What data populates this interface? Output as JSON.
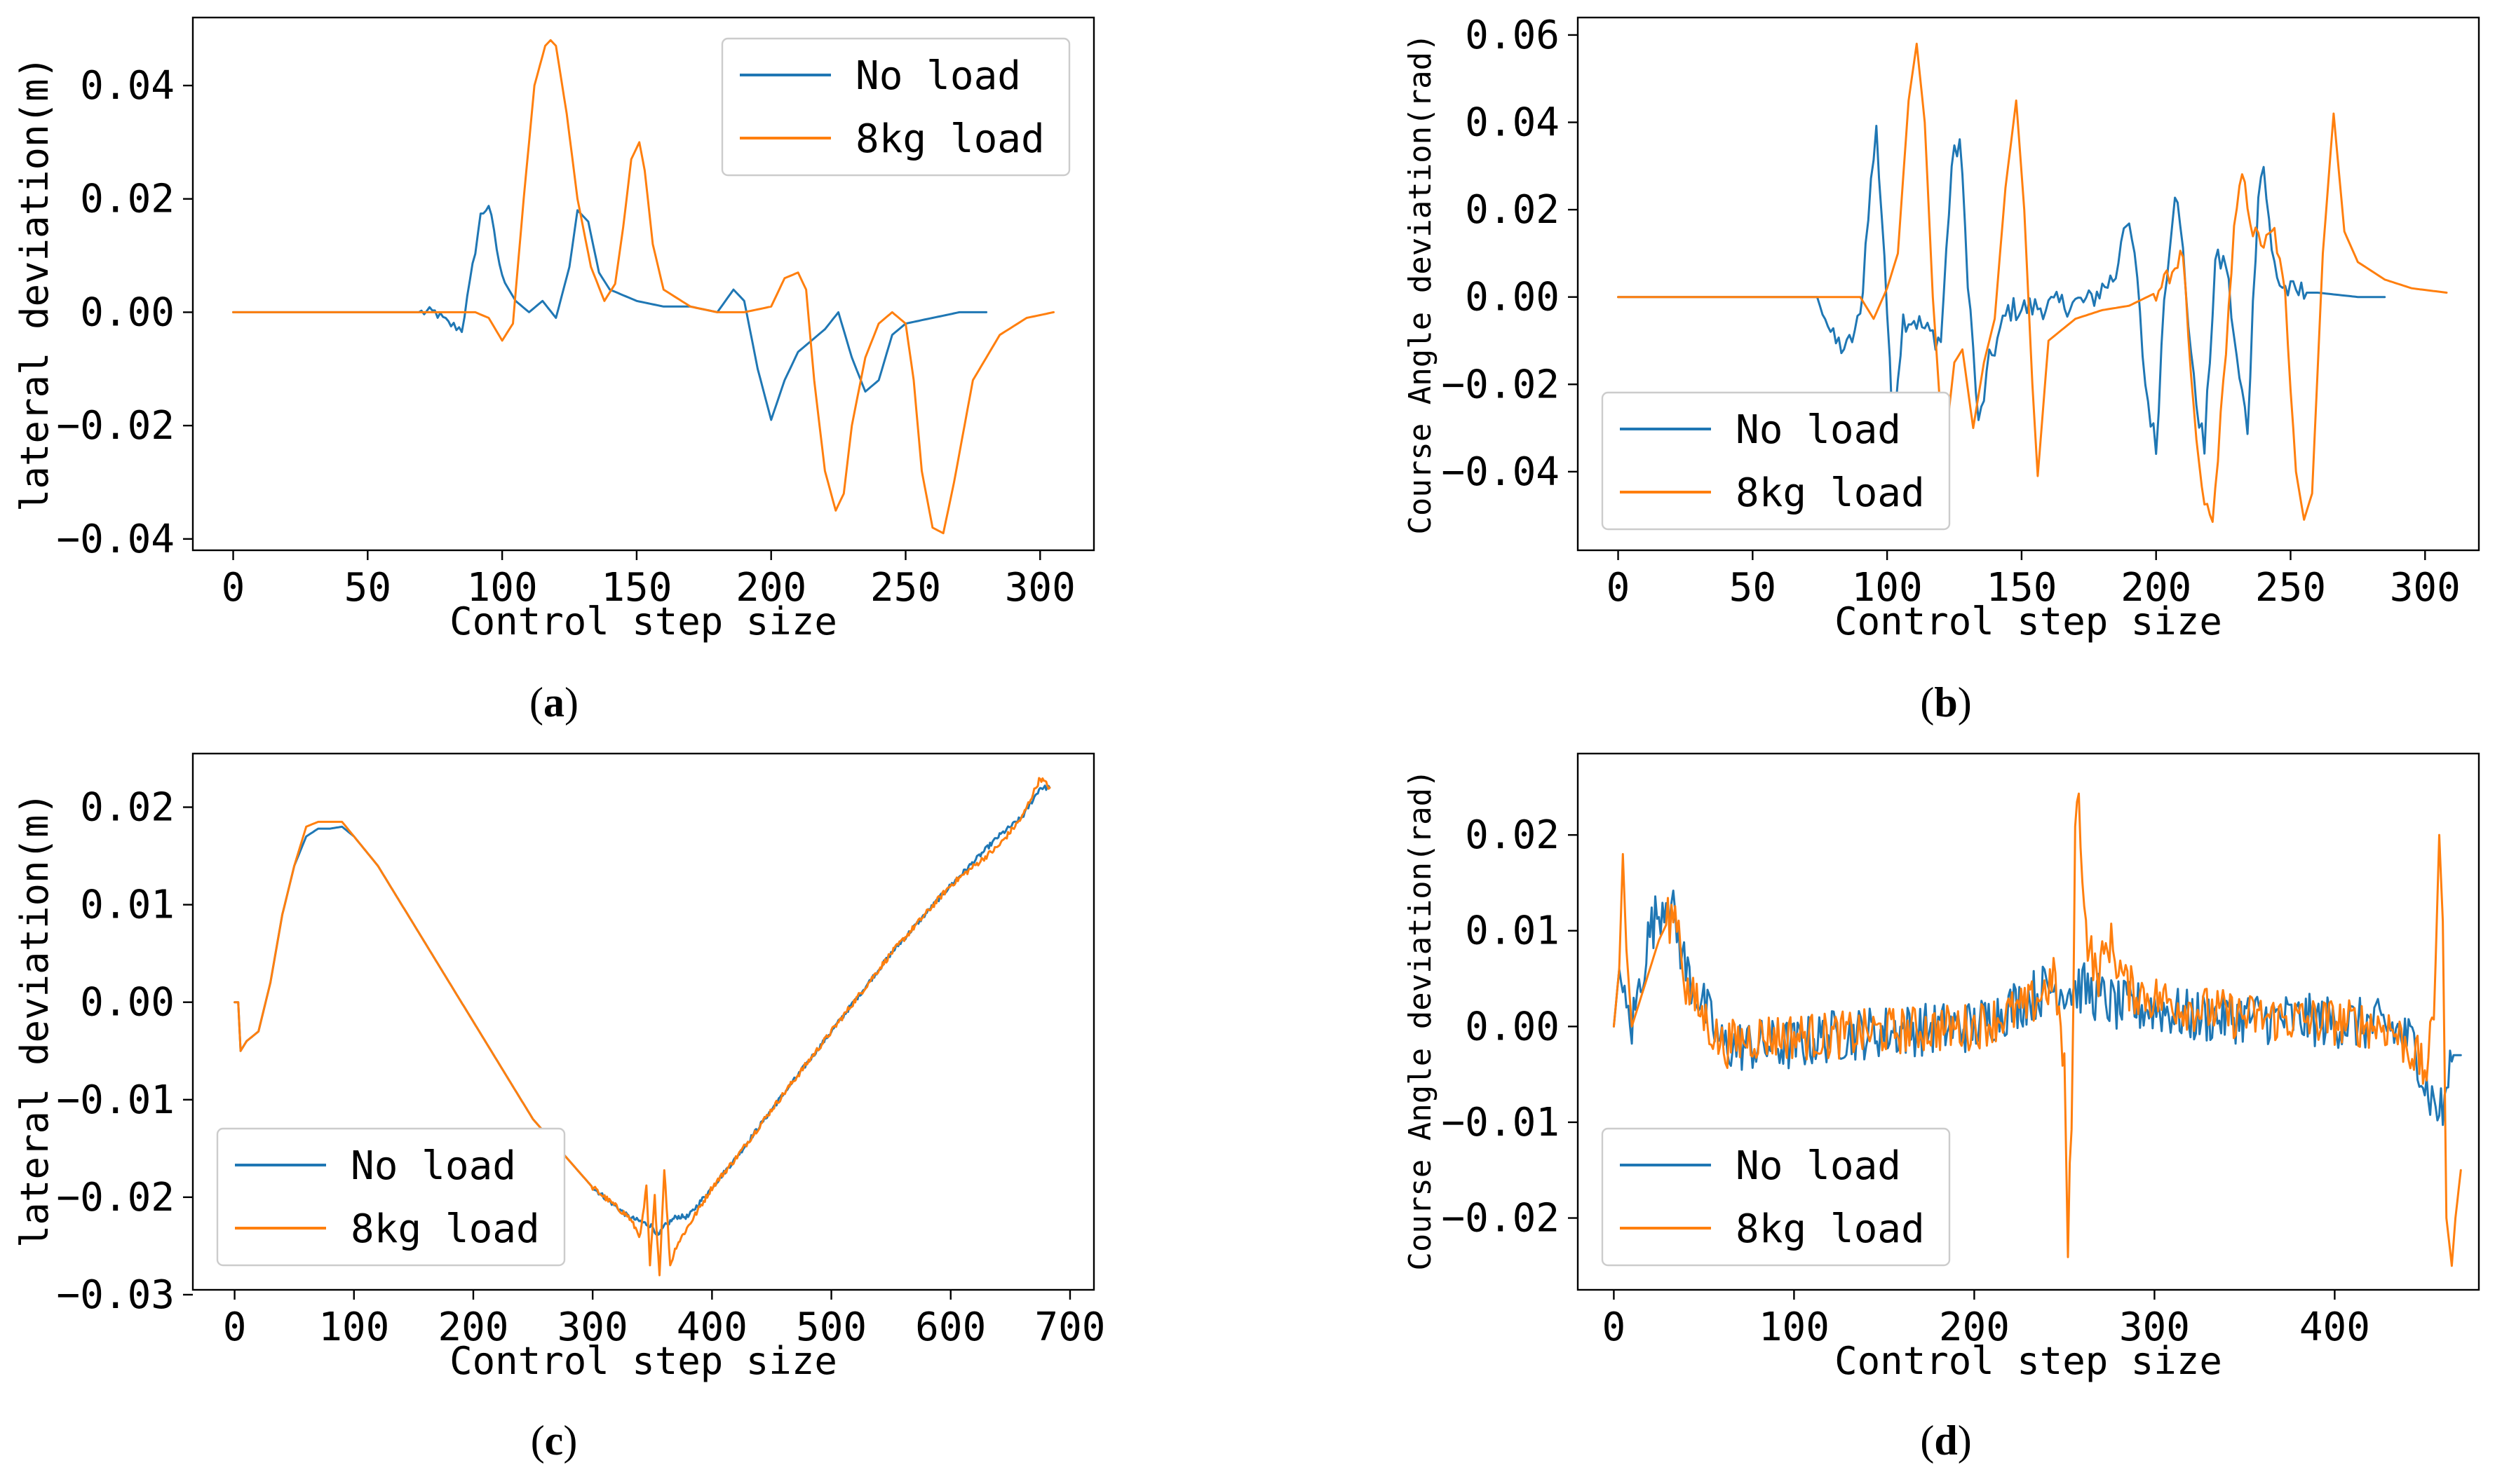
{
  "colors": {
    "no_load": "#1f77b4",
    "load_8kg": "#ff7f0e"
  },
  "chart_data": [
    {
      "id": "a",
      "type": "line",
      "caption_letter": "a",
      "xlabel": "Control step size",
      "ylabel": "lateral deviation(m)",
      "xlim": [
        -15,
        320
      ],
      "ylim": [
        -0.042,
        0.052
      ],
      "xticks": [
        0,
        50,
        100,
        150,
        200,
        250,
        300
      ],
      "xtick_labels": [
        "0",
        "50",
        "100",
        "150",
        "200",
        "250",
        "300"
      ],
      "yticks": [
        -0.04,
        -0.02,
        0.0,
        0.02,
        0.04
      ],
      "ytick_labels": [
        "−0.04",
        "−0.02",
        "0.00",
        "0.02",
        "0.04"
      ],
      "legend": {
        "position": "top-right",
        "entries": [
          "No load",
          "8kg load"
        ]
      },
      "series": [
        {
          "name": "No load",
          "color_key": "no_load",
          "noise": 0.0009,
          "noise_range": [
            70,
            100
          ],
          "x": [
            0,
            70,
            75,
            80,
            85,
            88,
            92,
            95,
            100,
            105,
            110,
            115,
            120,
            125,
            128,
            132,
            136,
            140,
            145,
            150,
            160,
            170,
            180,
            186,
            190,
            195,
            200,
            205,
            210,
            215,
            220,
            225,
            230,
            235,
            240,
            245,
            250,
            260,
            270,
            280
          ],
          "y": [
            0,
            0,
            0,
            -0.002,
            -0.003,
            0.005,
            0.017,
            0.019,
            0.006,
            0.002,
            0.0,
            0.002,
            -0.001,
            0.008,
            0.018,
            0.016,
            0.007,
            0.004,
            0.003,
            0.002,
            0.001,
            0.001,
            0.0,
            0.004,
            0.002,
            -0.01,
            -0.019,
            -0.012,
            -0.007,
            -0.005,
            -0.003,
            0.0,
            -0.008,
            -0.014,
            -0.012,
            -0.004,
            -0.002,
            -0.001,
            0.0,
            0.0
          ]
        },
        {
          "name": "8kg load",
          "color_key": "load_8kg",
          "noise": 0,
          "noise_range": [
            0,
            0
          ],
          "x": [
            0,
            90,
            95,
            100,
            104,
            108,
            112,
            116,
            118,
            120,
            124,
            128,
            133,
            138,
            142,
            145,
            148,
            151,
            153,
            156,
            160,
            170,
            180,
            190,
            200,
            205,
            210,
            213,
            216,
            220,
            224,
            227,
            230,
            235,
            240,
            245,
            250,
            253,
            256,
            260,
            264,
            268,
            275,
            285,
            295,
            305
          ],
          "y": [
            0,
            0,
            -0.001,
            -0.005,
            -0.002,
            0.02,
            0.04,
            0.047,
            0.048,
            0.047,
            0.035,
            0.02,
            0.008,
            0.002,
            0.005,
            0.015,
            0.027,
            0.03,
            0.025,
            0.012,
            0.004,
            0.001,
            0.0,
            0.0,
            0.001,
            0.006,
            0.007,
            0.004,
            -0.012,
            -0.028,
            -0.035,
            -0.032,
            -0.02,
            -0.008,
            -0.002,
            0.0,
            -0.002,
            -0.012,
            -0.028,
            -0.038,
            -0.039,
            -0.03,
            -0.012,
            -0.004,
            -0.001,
            0.0
          ]
        }
      ]
    },
    {
      "id": "b",
      "type": "line",
      "caption_letter": "b",
      "xlabel": "Control step size",
      "ylabel": "Course Angle deviation(rad)",
      "xlim": [
        -15,
        320
      ],
      "ylim": [
        -0.058,
        0.064
      ],
      "xticks": [
        0,
        50,
        100,
        150,
        200,
        250,
        300
      ],
      "xtick_labels": [
        "0",
        "50",
        "100",
        "150",
        "200",
        "250",
        "300"
      ],
      "yticks": [
        -0.04,
        -0.02,
        0.0,
        0.02,
        0.04,
        0.06
      ],
      "ytick_labels": [
        "−0.04",
        "−0.02",
        "0.00",
        "0.02",
        "0.04",
        "0.06"
      ],
      "legend": {
        "position": "bottom-left",
        "entries": [
          "No load",
          "8kg load"
        ]
      },
      "series": [
        {
          "name": "No load",
          "color_key": "no_load",
          "noise": 0.003,
          "noise_range": [
            75,
            255
          ],
          "x": [
            0,
            75,
            80,
            85,
            90,
            93,
            96,
            99,
            102,
            106,
            110,
            115,
            120,
            124,
            127,
            130,
            134,
            138,
            145,
            160,
            175,
            185,
            188,
            192,
            196,
            200,
            203,
            207,
            210,
            214,
            218,
            222,
            226,
            230,
            234,
            238,
            240,
            243,
            246,
            250,
            260,
            275,
            285
          ],
          "y": [
            0,
            0,
            -0.01,
            -0.012,
            -0.005,
            0.02,
            0.038,
            0.01,
            -0.03,
            -0.005,
            -0.005,
            -0.008,
            -0.01,
            0.03,
            0.036,
            0.005,
            -0.03,
            -0.015,
            -0.003,
            -0.002,
            -0.001,
            0.005,
            0.018,
            0.01,
            -0.02,
            -0.035,
            0.0,
            0.025,
            0.01,
            -0.02,
            -0.035,
            0.008,
            0.008,
            -0.015,
            -0.03,
            0.025,
            0.03,
            0.01,
            0.003,
            0.001,
            0.001,
            0.0,
            0.0
          ]
        },
        {
          "name": "8kg load",
          "color_key": "load_8kg",
          "noise": 0.002,
          "noise_range": [
            200,
            250
          ],
          "x": [
            0,
            90,
            95,
            100,
            104,
            108,
            111,
            114,
            117,
            121,
            125,
            128,
            132,
            136,
            140,
            144,
            148,
            151,
            154,
            156,
            160,
            170,
            180,
            190,
            200,
            205,
            210,
            213,
            217,
            221,
            225,
            229,
            232,
            236,
            240,
            244,
            248,
            252,
            255,
            258,
            262,
            266,
            270,
            275,
            285,
            295,
            308
          ],
          "y": [
            0,
            0,
            -0.005,
            0.002,
            0.01,
            0.045,
            0.058,
            0.04,
            0.0,
            -0.037,
            -0.015,
            -0.012,
            -0.03,
            -0.015,
            -0.005,
            0.025,
            0.045,
            0.02,
            -0.02,
            -0.041,
            -0.01,
            -0.005,
            -0.003,
            -0.002,
            0.001,
            0.005,
            0.01,
            -0.02,
            -0.045,
            -0.052,
            -0.02,
            0.015,
            0.028,
            0.015,
            0.012,
            0.015,
            0.0,
            -0.04,
            -0.051,
            -0.045,
            0.01,
            0.042,
            0.015,
            0.008,
            0.004,
            0.002,
            0.001
          ]
        }
      ]
    },
    {
      "id": "c",
      "type": "line",
      "caption_letter": "c",
      "xlabel": "Control step size",
      "ylabel": "lateral deviation(m)",
      "xlim": [
        -35,
        720
      ],
      "ylim": [
        -0.0295,
        0.0255
      ],
      "xticks": [
        0,
        100,
        200,
        300,
        400,
        500,
        600,
        700
      ],
      "xtick_labels": [
        "0",
        "100",
        "200",
        "300",
        "400",
        "500",
        "600",
        "700"
      ],
      "yticks": [
        -0.03,
        -0.02,
        -0.01,
        0.0,
        0.01,
        0.02
      ],
      "ytick_labels": [
        "−0.03",
        "−0.02",
        "−0.01",
        "0.00",
        "0.01",
        "0.02"
      ],
      "legend": {
        "position": "bottom-left",
        "entries": [
          "No load",
          "8kg load"
        ]
      },
      "series": [
        {
          "name": "No load",
          "color_key": "no_load",
          "noise": 0.00025,
          "noise_range": [
            300,
            690
          ],
          "x": [
            0,
            3,
            5,
            10,
            20,
            30,
            40,
            50,
            60,
            70,
            80,
            90,
            100,
            120,
            150,
            200,
            250,
            300,
            330,
            350,
            355,
            360,
            370,
            380,
            400,
            420,
            450,
            500,
            550,
            600,
            640,
            660,
            675,
            683
          ],
          "y": [
            0,
            0,
            -0.005,
            -0.004,
            -0.003,
            0.002,
            0.009,
            0.014,
            0.017,
            0.0178,
            0.0178,
            0.018,
            0.017,
            0.014,
            0.008,
            -0.002,
            -0.012,
            -0.019,
            -0.022,
            -0.023,
            -0.024,
            -0.023,
            -0.022,
            -0.022,
            -0.019,
            -0.016,
            -0.011,
            -0.003,
            0.005,
            0.012,
            0.017,
            0.019,
            0.022,
            0.022
          ]
        },
        {
          "name": "8kg load",
          "color_key": "load_8kg",
          "noise": 0.0003,
          "noise_range": [
            300,
            690
          ],
          "x": [
            0,
            3,
            5,
            10,
            20,
            30,
            40,
            50,
            60,
            70,
            80,
            90,
            100,
            120,
            150,
            200,
            250,
            300,
            330,
            340,
            345,
            348,
            352,
            356,
            360,
            365,
            370,
            380,
            400,
            420,
            450,
            500,
            550,
            600,
            640,
            660,
            675,
            683
          ],
          "y": [
            0,
            0,
            -0.005,
            -0.004,
            -0.003,
            0.002,
            0.009,
            0.014,
            0.018,
            0.0185,
            0.0185,
            0.0185,
            0.017,
            0.014,
            0.008,
            -0.002,
            -0.012,
            -0.019,
            -0.022,
            -0.024,
            -0.019,
            -0.027,
            -0.02,
            -0.028,
            -0.017,
            -0.027,
            -0.025,
            -0.023,
            -0.019,
            -0.016,
            -0.011,
            -0.003,
            0.005,
            0.012,
            0.016,
            0.019,
            0.023,
            0.022
          ]
        }
      ]
    },
    {
      "id": "d",
      "type": "line",
      "caption_letter": "d",
      "xlabel": "Control step size",
      "ylabel": "Course Angle deviation(rad)",
      "xlim": [
        -20,
        480
      ],
      "ylim": [
        -0.0275,
        0.0285
      ],
      "xticks": [
        0,
        100,
        200,
        300,
        400
      ],
      "xtick_labels": [
        "0",
        "100",
        "200",
        "300",
        "400"
      ],
      "yticks": [
        -0.02,
        -0.01,
        0.0,
        0.01,
        0.02
      ],
      "ytick_labels": [
        "−0.02",
        "−0.01",
        "0.00",
        "0.01",
        "0.02"
      ],
      "legend": {
        "position": "bottom-left",
        "entries": [
          "No load",
          "8kg load"
        ]
      },
      "series": [
        {
          "name": "No load",
          "color_key": "no_load",
          "noise": 0.0028,
          "noise_range": [
            5,
            465
          ],
          "x": [
            0,
            3,
            6,
            10,
            15,
            20,
            25,
            30,
            35,
            40,
            50,
            60,
            80,
            100,
            120,
            150,
            200,
            220,
            240,
            260,
            280,
            300,
            320,
            350,
            400,
            430,
            445,
            450,
            455,
            460,
            465,
            470
          ],
          "y": [
            0,
            0.006,
            0.002,
            0.0,
            0.005,
            0.01,
            0.012,
            0.014,
            0.01,
            0.006,
            0.002,
            -0.002,
            -0.002,
            -0.002,
            -0.001,
            -0.0005,
            0.0,
            0.002,
            0.004,
            0.004,
            0.002,
            0.002,
            0.001,
            0.001,
            0.0005,
            0.0,
            -0.002,
            -0.006,
            -0.008,
            -0.009,
            -0.003,
            -0.003
          ]
        },
        {
          "name": "8kg load",
          "color_key": "load_8kg",
          "noise": 0.0025,
          "noise_range": [
            30,
            455
          ],
          "x": [
            0,
            3,
            5,
            7,
            10,
            15,
            20,
            25,
            30,
            35,
            40,
            50,
            60,
            80,
            100,
            120,
            150,
            200,
            230,
            245,
            250,
            252,
            254,
            256,
            258,
            262,
            268,
            275,
            285,
            300,
            320,
            350,
            400,
            430,
            445,
            450,
            455,
            458,
            460,
            462,
            465,
            467,
            470
          ],
          "y": [
            0,
            0.006,
            0.018,
            0.008,
            0.0,
            0.003,
            0.006,
            0.009,
            0.011,
            0.012,
            0.004,
            0.001,
            -0.002,
            -0.001,
            -0.001,
            -0.001,
            -0.0005,
            0.0,
            0.002,
            0.005,
            -0.005,
            -0.023,
            -0.01,
            0.02,
            0.024,
            0.01,
            0.005,
            0.009,
            0.004,
            0.003,
            0.002,
            0.001,
            0.0005,
            0.0,
            -0.003,
            -0.005,
            0.0,
            0.02,
            0.011,
            -0.02,
            -0.025,
            -0.02,
            -0.015
          ]
        }
      ]
    }
  ]
}
